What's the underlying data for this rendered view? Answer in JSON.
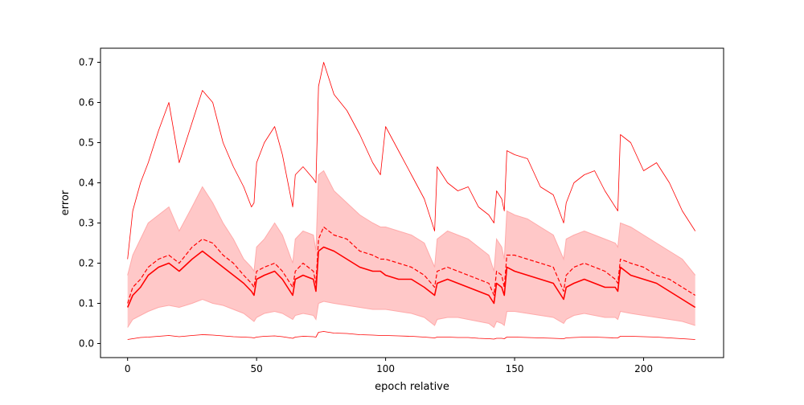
{
  "chart_data": {
    "type": "line",
    "title": "",
    "xlabel": "epoch relative",
    "ylabel": "error",
    "xlim": [
      -10.5,
      231
    ],
    "ylim": [
      -0.035,
      0.735
    ],
    "x_ticks": [
      0,
      50,
      100,
      150,
      200
    ],
    "y_ticks": [
      0.0,
      0.1,
      0.2,
      0.3,
      0.4,
      0.5,
      0.6,
      0.7
    ],
    "x_tick_labels": [
      "0",
      "50",
      "100",
      "150",
      "200"
    ],
    "y_tick_labels": [
      "0.0",
      "0.1",
      "0.2",
      "0.3",
      "0.4",
      "0.5",
      "0.6",
      "0.7"
    ],
    "grid": false,
    "legend": "none",
    "colors": {
      "line": "#ff0000",
      "band_fill": "#ffc8c8",
      "band_edge": "#ffaaaa",
      "axes": "#000000",
      "background": "#ffffff"
    },
    "x": [
      0,
      2,
      5,
      8,
      12,
      16,
      20,
      25,
      29,
      33,
      37,
      41,
      45,
      48,
      49,
      50,
      53,
      57,
      60,
      64,
      65,
      68,
      72,
      73,
      74,
      76,
      80,
      85,
      90,
      95,
      98,
      100,
      105,
      110,
      115,
      119,
      120,
      124,
      128,
      132,
      136,
      140,
      142,
      143,
      145,
      146,
      147,
      150,
      155,
      160,
      165,
      169,
      170,
      173,
      177,
      181,
      185,
      189,
      190,
      191,
      195,
      200,
      205,
      210,
      215,
      220
    ],
    "series": [
      {
        "style": "dashed",
        "values": [
          0.1,
          0.14,
          0.16,
          0.19,
          0.21,
          0.22,
          0.2,
          0.24,
          0.26,
          0.25,
          0.22,
          0.2,
          0.17,
          0.15,
          0.14,
          0.18,
          0.19,
          0.2,
          0.18,
          0.14,
          0.18,
          0.2,
          0.18,
          0.15,
          0.26,
          0.29,
          0.27,
          0.26,
          0.23,
          0.22,
          0.21,
          0.21,
          0.2,
          0.19,
          0.17,
          0.14,
          0.18,
          0.19,
          0.18,
          0.17,
          0.16,
          0.15,
          0.12,
          0.18,
          0.17,
          0.14,
          0.22,
          0.22,
          0.21,
          0.2,
          0.19,
          0.13,
          0.17,
          0.19,
          0.2,
          0.19,
          0.18,
          0.16,
          0.15,
          0.21,
          0.2,
          0.19,
          0.17,
          0.16,
          0.14,
          0.12
        ]
      },
      {
        "style": "solid",
        "values": [
          0.09,
          0.12,
          0.14,
          0.17,
          0.19,
          0.2,
          0.18,
          0.21,
          0.23,
          0.21,
          0.19,
          0.17,
          0.15,
          0.13,
          0.12,
          0.16,
          0.17,
          0.18,
          0.16,
          0.12,
          0.16,
          0.17,
          0.16,
          0.13,
          0.23,
          0.24,
          0.23,
          0.21,
          0.19,
          0.18,
          0.18,
          0.17,
          0.16,
          0.16,
          0.14,
          0.12,
          0.15,
          0.16,
          0.15,
          0.14,
          0.13,
          0.12,
          0.1,
          0.15,
          0.14,
          0.12,
          0.19,
          0.18,
          0.17,
          0.16,
          0.15,
          0.11,
          0.14,
          0.15,
          0.16,
          0.15,
          0.14,
          0.14,
          0.13,
          0.19,
          0.17,
          0.16,
          0.15,
          0.13,
          0.11,
          0.09
        ]
      },
      {
        "style": "solid-thin",
        "values": [
          0.21,
          0.33,
          0.4,
          0.45,
          0.53,
          0.6,
          0.45,
          0.55,
          0.63,
          0.6,
          0.5,
          0.44,
          0.39,
          0.34,
          0.35,
          0.45,
          0.5,
          0.54,
          0.47,
          0.34,
          0.42,
          0.44,
          0.41,
          0.4,
          0.64,
          0.7,
          0.62,
          0.58,
          0.52,
          0.45,
          0.42,
          0.54,
          0.48,
          0.42,
          0.36,
          0.28,
          0.44,
          0.4,
          0.38,
          0.39,
          0.34,
          0.32,
          0.3,
          0.38,
          0.36,
          0.33,
          0.48,
          0.47,
          0.46,
          0.39,
          0.37,
          0.3,
          0.35,
          0.4,
          0.42,
          0.43,
          0.38,
          0.34,
          0.33,
          0.52,
          0.5,
          0.43,
          0.45,
          0.4,
          0.33,
          0.28
        ]
      },
      {
        "style": "solid-thin",
        "values": [
          0.01,
          0.012,
          0.015,
          0.016,
          0.018,
          0.02,
          0.017,
          0.02,
          0.022,
          0.021,
          0.019,
          0.017,
          0.016,
          0.015,
          0.014,
          0.016,
          0.018,
          0.019,
          0.017,
          0.013,
          0.016,
          0.018,
          0.017,
          0.016,
          0.028,
          0.03,
          0.026,
          0.025,
          0.022,
          0.021,
          0.02,
          0.02,
          0.019,
          0.018,
          0.016,
          0.014,
          0.016,
          0.016,
          0.015,
          0.015,
          0.013,
          0.012,
          0.011,
          0.013,
          0.013,
          0.012,
          0.016,
          0.016,
          0.015,
          0.014,
          0.013,
          0.012,
          0.014,
          0.015,
          0.016,
          0.016,
          0.015,
          0.014,
          0.014,
          0.018,
          0.018,
          0.017,
          0.016,
          0.014,
          0.012,
          0.01
        ]
      }
    ],
    "band": {
      "upper": [
        0.17,
        0.22,
        0.26,
        0.3,
        0.32,
        0.34,
        0.28,
        0.34,
        0.39,
        0.35,
        0.3,
        0.26,
        0.21,
        0.19,
        0.18,
        0.24,
        0.26,
        0.3,
        0.27,
        0.2,
        0.26,
        0.28,
        0.27,
        0.23,
        0.42,
        0.43,
        0.38,
        0.35,
        0.32,
        0.3,
        0.29,
        0.29,
        0.28,
        0.27,
        0.25,
        0.19,
        0.26,
        0.28,
        0.27,
        0.26,
        0.24,
        0.22,
        0.18,
        0.26,
        0.24,
        0.21,
        0.33,
        0.32,
        0.31,
        0.29,
        0.27,
        0.21,
        0.26,
        0.27,
        0.28,
        0.27,
        0.26,
        0.25,
        0.24,
        0.3,
        0.29,
        0.27,
        0.25,
        0.23,
        0.21,
        0.17
      ],
      "lower": [
        0.04,
        0.06,
        0.07,
        0.08,
        0.09,
        0.095,
        0.09,
        0.1,
        0.11,
        0.1,
        0.095,
        0.085,
        0.075,
        0.06,
        0.055,
        0.065,
        0.075,
        0.08,
        0.075,
        0.06,
        0.07,
        0.075,
        0.07,
        0.06,
        0.1,
        0.105,
        0.1,
        0.095,
        0.09,
        0.085,
        0.085,
        0.085,
        0.08,
        0.075,
        0.065,
        0.045,
        0.06,
        0.065,
        0.065,
        0.06,
        0.055,
        0.05,
        0.04,
        0.055,
        0.05,
        0.045,
        0.08,
        0.08,
        0.075,
        0.07,
        0.065,
        0.05,
        0.06,
        0.07,
        0.075,
        0.07,
        0.065,
        0.065,
        0.06,
        0.08,
        0.075,
        0.07,
        0.065,
        0.06,
        0.055,
        0.045
      ]
    }
  }
}
